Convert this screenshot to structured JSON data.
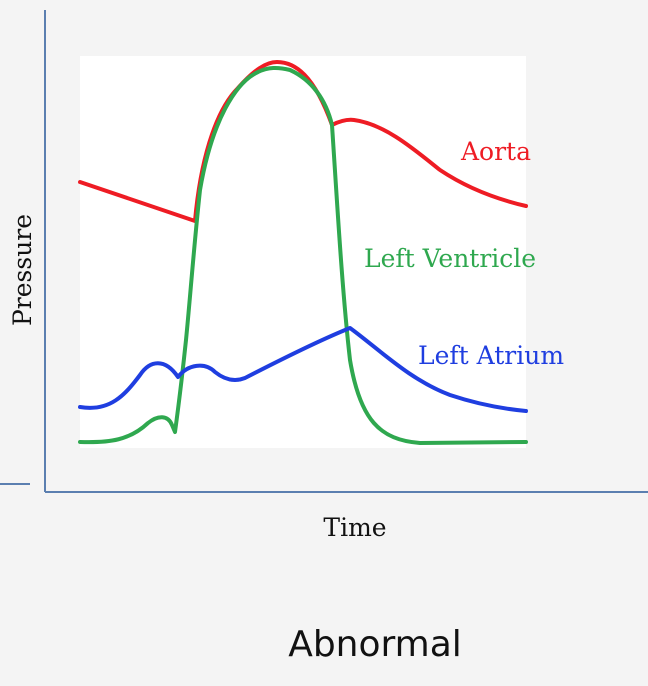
{
  "diagram": {
    "x_axis_label": "Time",
    "y_axis_label": "Pressure",
    "caption": "Abnormal",
    "colors": {
      "axis": "#5b7fb0",
      "aorta": "#ee1c24",
      "left_ventricle": "#2fa84f",
      "left_atrium": "#1f3ee0",
      "plot_background": "#ffffff",
      "page_background": "#f4f4f4"
    },
    "curves": [
      {
        "id": "aorta",
        "label": "Aorta",
        "color": "#ee1c24"
      },
      {
        "id": "left_ventricle",
        "label": "Left Ventricle",
        "color": "#2fa84f"
      },
      {
        "id": "left_atrium",
        "label": "Left Atrium",
        "color": "#1f3ee0"
      }
    ]
  }
}
